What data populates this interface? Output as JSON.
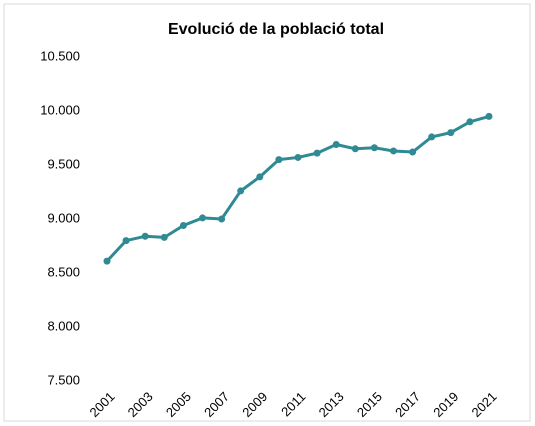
{
  "chart_data": {
    "type": "line",
    "title": "Evolució de la població total",
    "categories": [
      "2001",
      null,
      "2003",
      null,
      "2005",
      null,
      "2007",
      null,
      "2009",
      null,
      "2011",
      null,
      "2013",
      null,
      "2015",
      null,
      "2017",
      null,
      "2019",
      null,
      "2021"
    ],
    "series": [
      {
        "name": null,
        "color": "#2f8a94",
        "values": [
          8610,
          8800,
          8840,
          8830,
          8940,
          9010,
          9000,
          9260,
          9390,
          9550,
          9570,
          9610,
          9690,
          9650,
          9660,
          9630,
          9620,
          9760,
          9800,
          9900,
          9950
        ]
      }
    ],
    "ylim": [
      7500,
      10500
    ],
    "yticks": [
      {
        "value": 7500,
        "label": "7.500"
      },
      {
        "value": 8000,
        "label": "8.000"
      },
      {
        "value": 8500,
        "label": "8.500"
      },
      {
        "value": 9000,
        "label": "9.000"
      },
      {
        "value": 9500,
        "label": "9.500"
      },
      {
        "value": 10000,
        "label": "10.000"
      },
      {
        "value": 10500,
        "label": "10.500"
      }
    ],
    "grid": false
  }
}
